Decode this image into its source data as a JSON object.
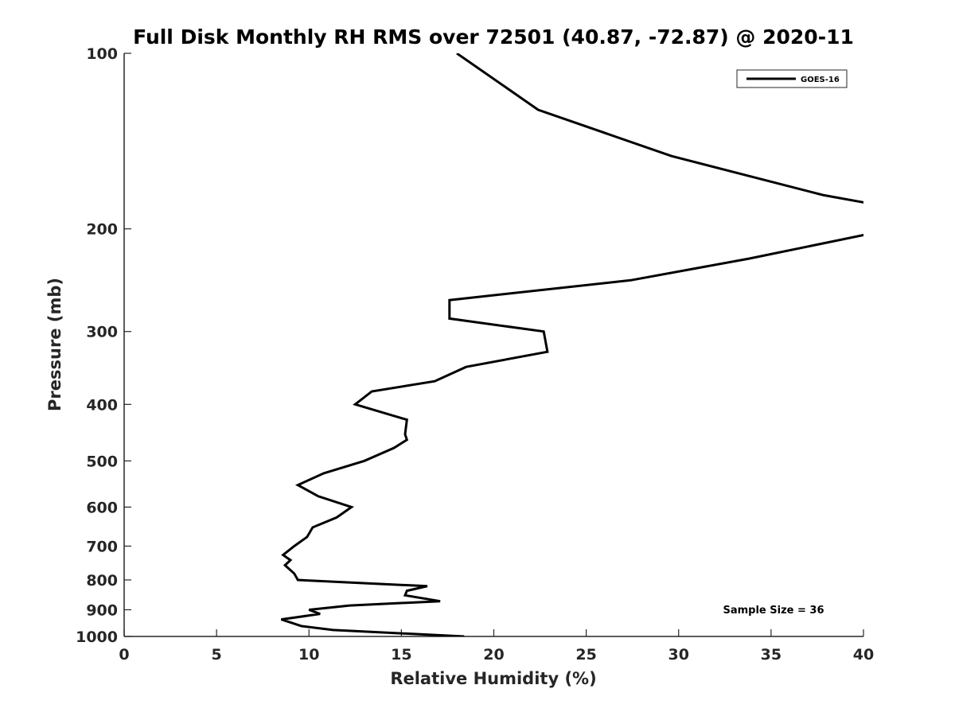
{
  "chart_data": {
    "type": "line",
    "title": "Full Disk Monthly RH RMS over 72501 (40.87, -72.87) @ 2020-11",
    "xlabel": "Relative Humidity (%)",
    "ylabel": "Pressure (mb)",
    "xlim": [
      0,
      40
    ],
    "ylim": [
      100,
      1000
    ],
    "y_scale": "log",
    "y_reversed": true,
    "grid": false,
    "x_ticks": [
      0,
      5,
      10,
      15,
      20,
      25,
      30,
      35,
      40
    ],
    "y_ticks": [
      100,
      200,
      300,
      400,
      500,
      600,
      700,
      800,
      900,
      1000
    ],
    "legend": {
      "position": "top-right",
      "entries": [
        "GOES-16"
      ]
    },
    "annotation": "Sample Size = 36",
    "series": [
      {
        "name": "GOES-16",
        "color": "#000000",
        "points": [
          [
            18.0,
            100
          ],
          [
            22.4,
            125
          ],
          [
            29.6,
            150
          ],
          [
            37.8,
            175
          ],
          [
            42.0,
            185
          ],
          [
            42.0,
            200
          ],
          [
            40.0,
            205
          ],
          [
            33.8,
            225
          ],
          [
            27.4,
            245
          ],
          [
            17.6,
            265
          ],
          [
            17.6,
            285
          ],
          [
            22.7,
            300
          ],
          [
            22.9,
            325
          ],
          [
            18.5,
            345
          ],
          [
            16.8,
            365
          ],
          [
            13.4,
            380
          ],
          [
            12.5,
            400
          ],
          [
            15.3,
            425
          ],
          [
            15.2,
            450
          ],
          [
            15.3,
            460
          ],
          [
            14.6,
            475
          ],
          [
            13.0,
            500
          ],
          [
            10.8,
            525
          ],
          [
            9.4,
            550
          ],
          [
            10.5,
            575
          ],
          [
            12.3,
            600
          ],
          [
            11.5,
            625
          ],
          [
            10.2,
            650
          ],
          [
            9.9,
            675
          ],
          [
            9.2,
            700
          ],
          [
            8.6,
            725
          ],
          [
            9.0,
            740
          ],
          [
            8.7,
            755
          ],
          [
            9.2,
            780
          ],
          [
            9.4,
            800
          ],
          [
            16.4,
            820
          ],
          [
            15.3,
            835
          ],
          [
            15.2,
            850
          ],
          [
            17.1,
            870
          ],
          [
            12.2,
            885
          ],
          [
            10.0,
            900
          ],
          [
            10.6,
            915
          ],
          [
            8.5,
            935
          ],
          [
            9.6,
            960
          ],
          [
            11.3,
            975
          ],
          [
            18.4,
            1000
          ]
        ]
      }
    ]
  }
}
